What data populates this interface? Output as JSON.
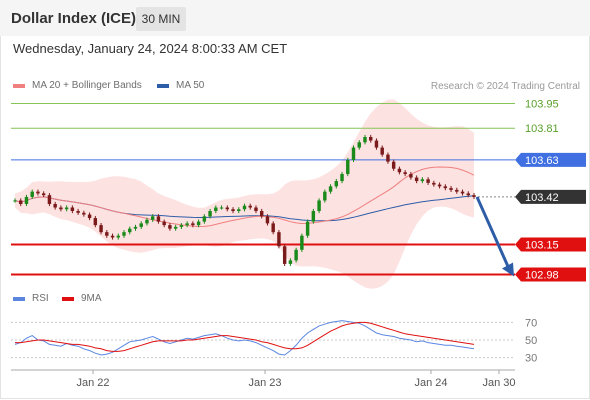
{
  "header": {
    "title": "Dollar Index (ICE)",
    "timeframe": "30 MIN",
    "datetime": "Wednesday, January 24, 2024 8:00:33 AM CET"
  },
  "legend": {
    "ma20": "MA 20 + Bollinger Bands",
    "ma50": "MA 50",
    "rsi": "RSI",
    "ma9": "9MA",
    "credit": "Research © 2024 Trading Central"
  },
  "colors": {
    "ma20": "#f07f7f",
    "ma50": "#2e5da8",
    "bollinger": "#fde2e2",
    "candle_up": "#1a8a1a",
    "candle_down": "#7b1a1a",
    "resistance_green": "#86c456",
    "pivot_blue": "#3f6fe0",
    "support_red": "#e01010",
    "current": "#333333",
    "arrow": "#2e5da8",
    "rsi": "#5b86e0"
  },
  "chart_data": [
    {
      "type": "candlestick",
      "title": "Dollar Index (ICE)",
      "timeframe": "30 MIN",
      "x_ticks": [
        "Jan 22",
        "Jan 23",
        "Jan 24",
        "Jan 30"
      ],
      "ylim": [
        102.96,
        103.97
      ],
      "series": [
        {
          "name": "MA 20 + Bollinger Bands",
          "color": "#f07f7f"
        },
        {
          "name": "MA 50",
          "color": "#2e5da8"
        }
      ],
      "closes": [
        103.4,
        103.38,
        103.42,
        103.45,
        103.44,
        103.43,
        103.38,
        103.36,
        103.35,
        103.36,
        103.34,
        103.33,
        103.32,
        103.3,
        103.26,
        103.22,
        103.2,
        103.19,
        103.2,
        103.22,
        103.24,
        103.25,
        103.27,
        103.29,
        103.31,
        103.28,
        103.26,
        103.24,
        103.25,
        103.26,
        103.27,
        103.26,
        103.28,
        103.31,
        103.34,
        103.36,
        103.36,
        103.35,
        103.34,
        103.35,
        103.37,
        103.36,
        103.34,
        103.31,
        103.27,
        103.22,
        103.14,
        103.04,
        103.06,
        103.12,
        103.2,
        103.28,
        103.34,
        103.4,
        103.45,
        103.48,
        103.51,
        103.55,
        103.63,
        103.7,
        103.73,
        103.76,
        103.74,
        103.7,
        103.66,
        103.62,
        103.58,
        103.56,
        103.55,
        103.53,
        103.51,
        103.52,
        103.5,
        103.49,
        103.48,
        103.47,
        103.46,
        103.45,
        103.44,
        103.43,
        103.42
      ],
      "support_resistance": [
        {
          "value": "103.95",
          "type": "resistance",
          "color": "#86c456"
        },
        {
          "value": "103.81",
          "type": "resistance",
          "color": "#86c456"
        },
        {
          "value": "103.63",
          "type": "pivot",
          "color": "#3f6fe0"
        },
        {
          "value": "103.42",
          "type": "last",
          "color": "#333333"
        },
        {
          "value": "103.15",
          "type": "support",
          "color": "#e01010"
        },
        {
          "value": "102.98",
          "type": "support",
          "color": "#e01010"
        }
      ],
      "forecast_arrow": {
        "from": 103.42,
        "to": 102.98
      }
    },
    {
      "type": "line",
      "title": "",
      "series": [
        {
          "name": "RSI",
          "color": "#5b86e0"
        },
        {
          "name": "9MA",
          "color": "#e01010"
        }
      ],
      "ylim": [
        25,
        75
      ],
      "y_ticks": [
        "70",
        "50",
        "30"
      ],
      "rsi_values": [
        45,
        47,
        52,
        55,
        50,
        49,
        45,
        44,
        43,
        46,
        44,
        43,
        40,
        38,
        35,
        33,
        34,
        36,
        40,
        44,
        48,
        49,
        50,
        52,
        54,
        51,
        48,
        46,
        48,
        50,
        52,
        51,
        53,
        55,
        56,
        57,
        55,
        52,
        50,
        49,
        50,
        49,
        47,
        44,
        41,
        38,
        34,
        33,
        38,
        44,
        52,
        58,
        62,
        66,
        68,
        70,
        71,
        72,
        71,
        70,
        69,
        66,
        62,
        58,
        56,
        55,
        54,
        52,
        51,
        50,
        48,
        49,
        47,
        46,
        45,
        44,
        44,
        43,
        42,
        41,
        40
      ],
      "ma_values": [
        47,
        47,
        48,
        49,
        50,
        50,
        49,
        48,
        47,
        46,
        45,
        45,
        44,
        43,
        41,
        40,
        38,
        37,
        37,
        38,
        40,
        42,
        44,
        46,
        48,
        49,
        49,
        49,
        49,
        49,
        50,
        50,
        51,
        52,
        53,
        54,
        55,
        55,
        54,
        53,
        52,
        51,
        50,
        48,
        47,
        45,
        43,
        41,
        40,
        40,
        41,
        44,
        48,
        52,
        56,
        60,
        63,
        66,
        68,
        69,
        70,
        70,
        69,
        67,
        65,
        63,
        61,
        59,
        57,
        56,
        55,
        54,
        53,
        52,
        51,
        50,
        49,
        48,
        47,
        46,
        45
      ],
      "x_ticks": [
        "Jan 22",
        "Jan 23",
        "Jan 24",
        "Jan 30"
      ]
    }
  ]
}
